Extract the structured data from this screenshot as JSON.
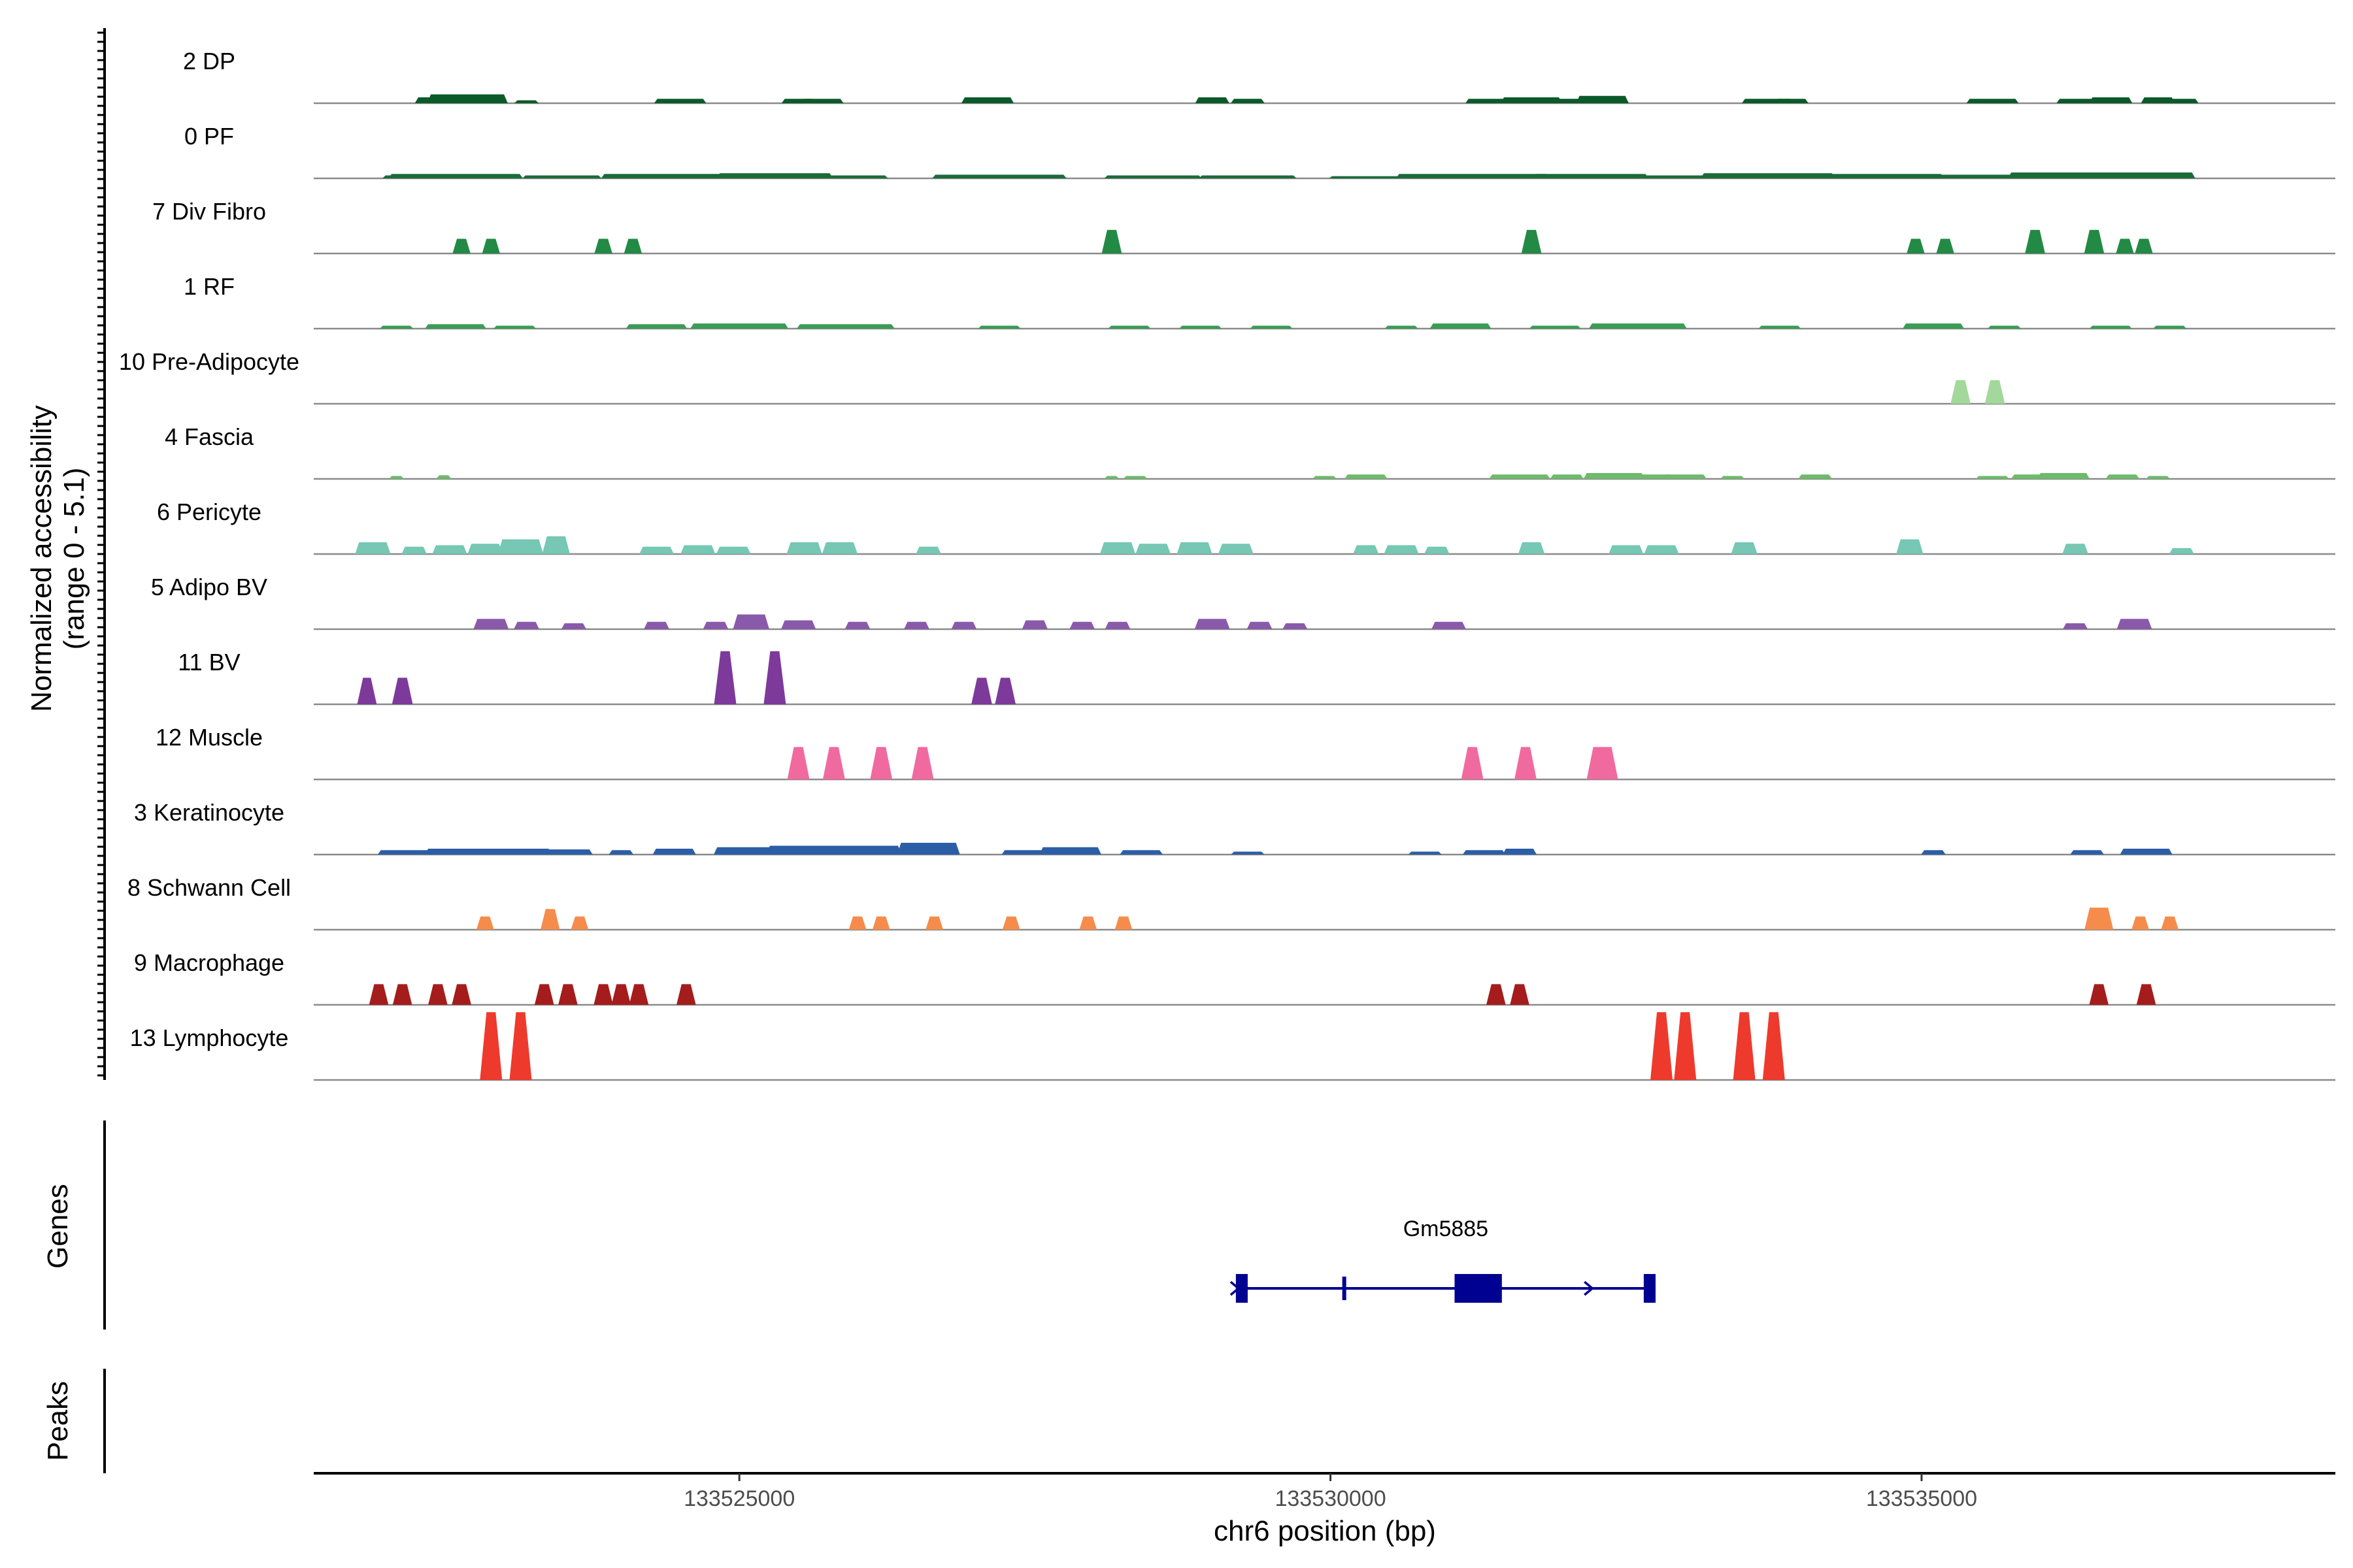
{
  "chart_data": {
    "type": "area",
    "title": "",
    "ylabel_line1": "Normalized accessibility",
    "ylabel_line2": "(range 0 - 5.1)",
    "y_range": [
      0,
      5.1
    ],
    "genes_label": "Genes",
    "peaks_label": "Peaks",
    "xlabel": "chr6 position (bp)",
    "x_range": [
      133521400,
      133538500
    ],
    "x_ticks": [
      133525000,
      133530000,
      133535000
    ],
    "x_tick_labels": [
      "133525000",
      "133530000",
      "133535000"
    ],
    "tracks": [
      {
        "name": "2 DP",
        "color": "#0b5a2a",
        "peaks": [
          [
            133522400,
            0.4,
            3
          ],
          [
            133522700,
            0.6,
            8
          ],
          [
            133523200,
            0.2,
            2
          ],
          [
            133524500,
            0.3,
            5
          ],
          [
            133525500,
            0.3,
            3
          ],
          [
            133525700,
            0.3,
            4
          ],
          [
            133527100,
            0.4,
            5
          ],
          [
            133529000,
            0.4,
            3
          ],
          [
            133529300,
            0.3,
            3
          ],
          [
            133531400,
            0.3,
            6
          ],
          [
            133531700,
            0.4,
            6
          ],
          [
            133532000,
            0.3,
            3
          ],
          [
            133532300,
            0.5,
            5
          ],
          [
            133533700,
            0.3,
            5
          ],
          [
            133533900,
            0.3,
            3
          ],
          [
            133535600,
            0.3,
            5
          ],
          [
            133536400,
            0.3,
            6
          ],
          [
            133536600,
            0.4,
            4
          ],
          [
            133537000,
            0.4,
            3
          ],
          [
            133537200,
            0.3,
            3
          ]
        ]
      },
      {
        "name": "0 PF",
        "color": "#1a6b3a",
        "peaks": [
          [
            133522200,
            0.2,
            5
          ],
          [
            133522600,
            0.3,
            14
          ],
          [
            133523500,
            0.2,
            8
          ],
          [
            133524400,
            0.3,
            14
          ],
          [
            133525300,
            0.35,
            12
          ],
          [
            133526000,
            0.2,
            6
          ],
          [
            133527200,
            0.25,
            14
          ],
          [
            133528500,
            0.2,
            10
          ],
          [
            133529300,
            0.2,
            10
          ],
          [
            133530400,
            0.15,
            10
          ],
          [
            133531200,
            0.3,
            16
          ],
          [
            133532200,
            0.3,
            12
          ],
          [
            133533000,
            0.2,
            10
          ],
          [
            133533700,
            0.35,
            14
          ],
          [
            133534700,
            0.3,
            12
          ],
          [
            133535500,
            0.25,
            12
          ],
          [
            133536300,
            0.4,
            14
          ],
          [
            133536900,
            0.4,
            10
          ]
        ]
      },
      {
        "name": "7 Div Fibro",
        "color": "#228a44",
        "peaks": [
          [
            133522650,
            1.0,
            1
          ],
          [
            133522900,
            1.0,
            1
          ],
          [
            133523850,
            1.0,
            1
          ],
          [
            133524100,
            1.0,
            1
          ],
          [
            133528150,
            1.6,
            1
          ],
          [
            133531700,
            1.6,
            1
          ],
          [
            133534950,
            1.0,
            1
          ],
          [
            133535200,
            1.0,
            1
          ],
          [
            133535960,
            1.6,
            1
          ],
          [
            133536460,
            1.6,
            1
          ],
          [
            133536720,
            1.0,
            1
          ],
          [
            133536880,
            1.0,
            1
          ]
        ]
      },
      {
        "name": "1 RF",
        "color": "#3a9c55",
        "peaks": [
          [
            133522100,
            0.2,
            3
          ],
          [
            133522600,
            0.3,
            6
          ],
          [
            133523100,
            0.2,
            4
          ],
          [
            133524300,
            0.3,
            6
          ],
          [
            133525000,
            0.35,
            10
          ],
          [
            133525900,
            0.3,
            10
          ],
          [
            133527200,
            0.2,
            4
          ],
          [
            133528300,
            0.2,
            4
          ],
          [
            133528900,
            0.2,
            4
          ],
          [
            133529500,
            0.2,
            4
          ],
          [
            133530600,
            0.2,
            3
          ],
          [
            133531100,
            0.35,
            6
          ],
          [
            133531900,
            0.2,
            5
          ],
          [
            133532600,
            0.35,
            10
          ],
          [
            133533800,
            0.2,
            4
          ],
          [
            133535100,
            0.35,
            6
          ],
          [
            133535700,
            0.2,
            3
          ],
          [
            133536600,
            0.2,
            4
          ],
          [
            133537100,
            0.2,
            3
          ]
        ]
      },
      {
        "name": "10 Pre-Adipocyte",
        "color": "#a2d89a",
        "peaks": [
          [
            133535330,
            1.6,
            1
          ],
          [
            133535620,
            1.6,
            1
          ]
        ]
      },
      {
        "name": "4 Fascia",
        "color": "#6dbb6a",
        "peaks": [
          [
            133522100,
            0.2,
            1
          ],
          [
            133522500,
            0.25,
            1
          ],
          [
            133528150,
            0.2,
            1
          ],
          [
            133528350,
            0.2,
            2
          ],
          [
            133529950,
            0.2,
            2
          ],
          [
            133530300,
            0.3,
            4
          ],
          [
            133531600,
            0.3,
            6
          ],
          [
            133532000,
            0.3,
            3
          ],
          [
            133532400,
            0.4,
            6
          ],
          [
            133532750,
            0.3,
            3
          ],
          [
            133533000,
            0.3,
            4
          ],
          [
            133533400,
            0.2,
            2
          ],
          [
            133534100,
            0.3,
            3
          ],
          [
            133535600,
            0.2,
            3
          ],
          [
            133535900,
            0.3,
            3
          ],
          [
            133536200,
            0.4,
            5
          ],
          [
            133536700,
            0.3,
            3
          ],
          [
            133537000,
            0.2,
            2
          ]
        ]
      },
      {
        "name": "6 Pericyte",
        "color": "#76c7b3",
        "peaks": [
          [
            133521900,
            0.8,
            3
          ],
          [
            133522250,
            0.5,
            2
          ],
          [
            133522550,
            0.6,
            3
          ],
          [
            133522850,
            0.7,
            3
          ],
          [
            133523150,
            1.0,
            4
          ],
          [
            133523450,
            1.2,
            2
          ],
          [
            133524300,
            0.5,
            3
          ],
          [
            133524650,
            0.6,
            3
          ],
          [
            133524950,
            0.5,
            3
          ],
          [
            133525550,
            0.8,
            3
          ],
          [
            133525850,
            0.8,
            3
          ],
          [
            133526600,
            0.5,
            2
          ],
          [
            133528200,
            0.8,
            3
          ],
          [
            133528500,
            0.7,
            3
          ],
          [
            133528850,
            0.8,
            3
          ],
          [
            133529200,
            0.7,
            3
          ],
          [
            133530300,
            0.6,
            2
          ],
          [
            133530600,
            0.6,
            3
          ],
          [
            133530900,
            0.5,
            2
          ],
          [
            133531700,
            0.8,
            2
          ],
          [
            133532500,
            0.6,
            3
          ],
          [
            133532800,
            0.6,
            3
          ],
          [
            133533500,
            0.8,
            2
          ],
          [
            133534900,
            1.0,
            2
          ],
          [
            133536300,
            0.7,
            2
          ],
          [
            133537200,
            0.4,
            2
          ]
        ]
      },
      {
        "name": "5 Adipo BV",
        "color": "#8a5aaa",
        "peaks": [
          [
            133522900,
            0.7,
            3
          ],
          [
            133523200,
            0.5,
            2
          ],
          [
            133523600,
            0.4,
            2
          ],
          [
            133524300,
            0.5,
            2
          ],
          [
            133524800,
            0.5,
            2
          ],
          [
            133525100,
            1.0,
            3
          ],
          [
            133525500,
            0.6,
            3
          ],
          [
            133526000,
            0.5,
            2
          ],
          [
            133526500,
            0.5,
            2
          ],
          [
            133526900,
            0.5,
            2
          ],
          [
            133527500,
            0.6,
            2
          ],
          [
            133527900,
            0.5,
            2
          ],
          [
            133528200,
            0.5,
            2
          ],
          [
            133529000,
            0.7,
            3
          ],
          [
            133529400,
            0.5,
            2
          ],
          [
            133529700,
            0.4,
            2
          ],
          [
            133531000,
            0.5,
            3
          ],
          [
            133536300,
            0.4,
            2
          ],
          [
            133536800,
            0.7,
            3
          ]
        ]
      },
      {
        "name": "11 BV",
        "color": "#7d3a9a",
        "peaks": [
          [
            133521850,
            1.8,
            0
          ],
          [
            133522150,
            1.8,
            1
          ],
          [
            133524880,
            3.6,
            1
          ],
          [
            133525300,
            3.6,
            1
          ],
          [
            133527050,
            1.8,
            1
          ],
          [
            133527250,
            1.8,
            1
          ]
        ]
      },
      {
        "name": "12 Muscle",
        "color": "#f06aa0",
        "peaks": [
          [
            133525500,
            2.2,
            1
          ],
          [
            133525800,
            2.2,
            1
          ],
          [
            133526200,
            2.2,
            1
          ],
          [
            133526550,
            2.2,
            1
          ],
          [
            133531200,
            2.2,
            1
          ],
          [
            133531650,
            2.2,
            1
          ],
          [
            133532300,
            2.2,
            2
          ]
        ]
      },
      {
        "name": "3 Keratinocyte",
        "color": "#2b5ea6",
        "peaks": [
          [
            133522200,
            0.3,
            6
          ],
          [
            133522600,
            0.4,
            6
          ],
          [
            133523000,
            0.4,
            10
          ],
          [
            133523500,
            0.35,
            6
          ],
          [
            133524000,
            0.3,
            2
          ],
          [
            133524450,
            0.4,
            4
          ],
          [
            133525200,
            0.5,
            10
          ],
          [
            133525800,
            0.6,
            14
          ],
          [
            133526600,
            0.8,
            6
          ],
          [
            133527400,
            0.3,
            4
          ],
          [
            133527800,
            0.5,
            6
          ],
          [
            133528400,
            0.3,
            4
          ],
          [
            133529300,
            0.2,
            3
          ],
          [
            133530800,
            0.2,
            3
          ],
          [
            133531300,
            0.3,
            4
          ],
          [
            133531600,
            0.4,
            3
          ],
          [
            133535100,
            0.3,
            2
          ],
          [
            133536400,
            0.3,
            3
          ],
          [
            133536900,
            0.4,
            5
          ]
        ]
      },
      {
        "name": "8 Schwann Cell",
        "color": "#f58c4b",
        "peaks": [
          [
            133522850,
            0.9,
            1
          ],
          [
            133523400,
            1.4,
            1
          ],
          [
            133523650,
            0.9,
            1
          ],
          [
            133526000,
            0.9,
            1
          ],
          [
            133526200,
            0.9,
            1
          ],
          [
            133526650,
            0.9,
            1
          ],
          [
            133527300,
            0.9,
            1
          ],
          [
            133527950,
            0.9,
            1
          ],
          [
            133528250,
            0.9,
            1
          ],
          [
            133536500,
            1.5,
            2
          ],
          [
            133536850,
            0.9,
            1
          ],
          [
            133537100,
            0.9,
            1
          ]
        ]
      },
      {
        "name": "9 Macrophage",
        "color": "#a51c1c",
        "peaks": [
          [
            133521950,
            1.4,
            1
          ],
          [
            133522150,
            1.4,
            1
          ],
          [
            133522450,
            1.4,
            1
          ],
          [
            133522650,
            1.4,
            1
          ],
          [
            133523350,
            1.4,
            1
          ],
          [
            133523550,
            1.4,
            1
          ],
          [
            133523850,
            1.4,
            1
          ],
          [
            133524000,
            1.4,
            1
          ],
          [
            133524150,
            1.4,
            1
          ],
          [
            133524550,
            1.4,
            1
          ],
          [
            133531400,
            1.4,
            1
          ],
          [
            133531600,
            1.4,
            1
          ],
          [
            133536500,
            1.4,
            1
          ],
          [
            133536900,
            1.4,
            1
          ]
        ]
      },
      {
        "name": "13 Lymphocyte",
        "color": "#ee3a2c",
        "peaks": [
          [
            133522900,
            4.6,
            1
          ],
          [
            133523150,
            4.6,
            1
          ],
          [
            133532800,
            4.6,
            1
          ],
          [
            133533000,
            4.6,
            1
          ],
          [
            133533500,
            4.6,
            1
          ],
          [
            133533750,
            4.6,
            1
          ]
        ]
      }
    ],
    "gene": {
      "name": "Gm5885",
      "start": 133529200,
      "end": 133532750,
      "strand": "+",
      "exons": [
        [
          133529200,
          133529300
        ],
        [
          133530100,
          133530130
        ],
        [
          133531050,
          133531450
        ],
        [
          133532650,
          133532750
        ]
      ],
      "color": "#000091"
    }
  }
}
